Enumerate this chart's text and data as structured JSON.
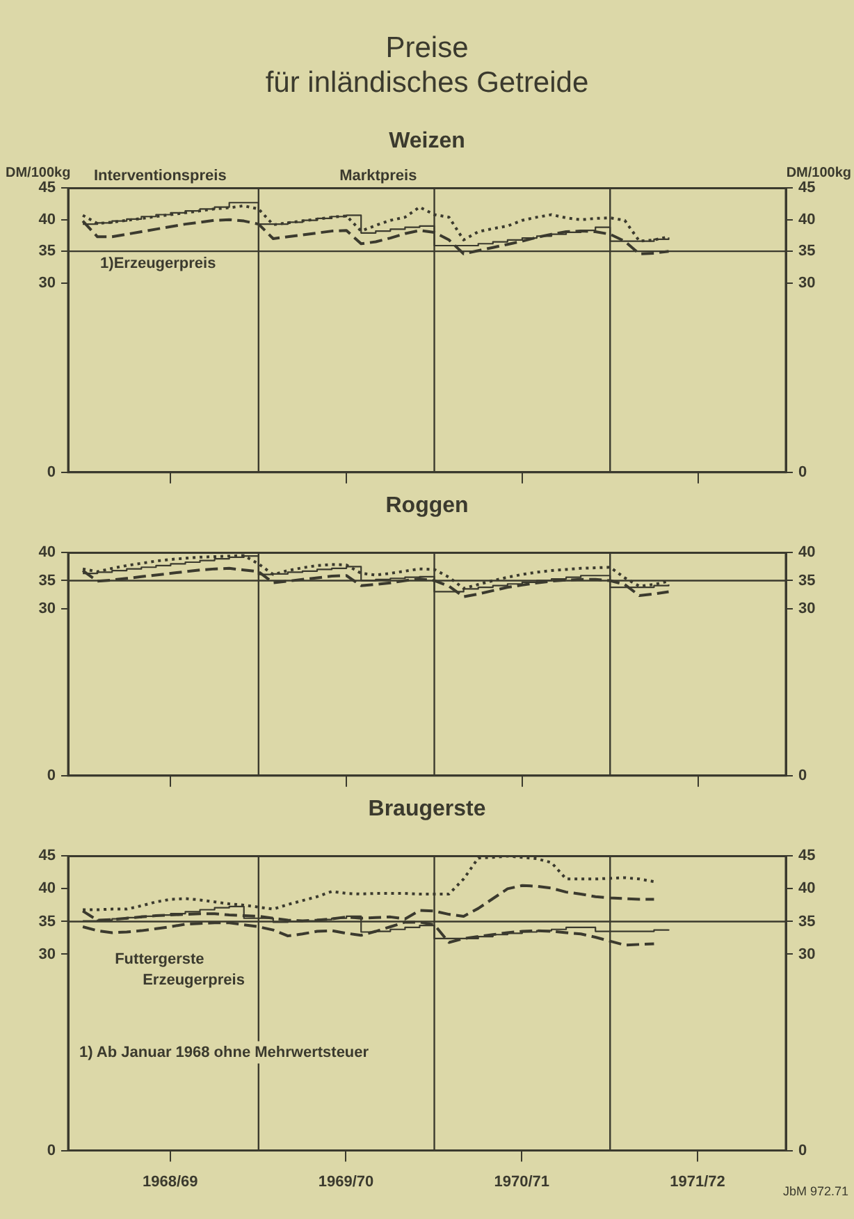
{
  "chart_data": [
    {
      "type": "line",
      "title": "Preise\nfür inländisches Getreide",
      "subtitle": "Weizen",
      "ylabel": "DM/100kg",
      "y2label": "DM/100kg",
      "x": [
        "1968-07",
        "1968-08",
        "1968-09",
        "1968-10",
        "1968-11",
        "1968-12",
        "1969-01",
        "1969-02",
        "1969-03",
        "1969-04",
        "1969-05",
        "1969-06",
        "1969-07",
        "1969-08",
        "1969-09",
        "1969-10",
        "1969-11",
        "1969-12",
        "1970-01",
        "1970-02",
        "1970-03",
        "1970-04",
        "1970-05",
        "1970-06",
        "1970-07",
        "1970-08",
        "1970-09",
        "1970-10",
        "1970-11",
        "1970-12",
        "1971-01",
        "1971-02",
        "1971-03",
        "1971-04",
        "1971-05",
        "1971-06",
        "1971-07",
        "1971-08",
        "1971-09",
        "1971-10",
        "1971-11"
      ],
      "series": [
        {
          "name": "Interventionspreis",
          "type": "step",
          "color": "#3b3a2e",
          "line_style": "solid",
          "values": [
            39.3,
            39.5,
            39.8,
            40.1,
            40.5,
            40.8,
            41.1,
            41.4,
            41.7,
            42.0,
            42.7,
            42.7,
            39.3,
            39.3,
            39.6,
            39.9,
            40.2,
            40.5,
            40.7,
            37.9,
            38.2,
            38.5,
            38.8,
            39.0,
            35.9,
            35.9,
            35.9,
            36.2,
            36.5,
            36.8,
            37.1,
            37.4,
            37.7,
            38.0,
            38.3,
            38.8,
            36.6,
            36.6,
            36.6,
            36.9,
            37.2
          ]
        },
        {
          "name": "Marktpreis",
          "color": "#3b3a2e",
          "line_style": "dotted",
          "values": [
            40.7,
            39.4,
            39.6,
            39.9,
            40.2,
            40.5,
            40.8,
            41.1,
            41.4,
            41.7,
            41.9,
            42.2,
            41.7,
            39.2,
            39.5,
            39.8,
            40.1,
            40.4,
            40.6,
            38.2,
            39.1,
            39.9,
            40.4,
            42.0,
            40.8,
            40.4,
            36.8,
            38.1,
            38.6,
            39.0,
            39.9,
            40.4,
            40.8,
            40.3,
            40.0,
            40.2,
            40.3,
            39.9,
            36.6,
            36.8,
            37.3
          ]
        },
        {
          "name": "1)Erzeugerpreis",
          "color": "#3b3a2e",
          "line_style": "dashed",
          "values": [
            39.8,
            37.3,
            37.3,
            37.7,
            38.1,
            38.5,
            38.9,
            39.3,
            39.6,
            39.9,
            40.0,
            39.8,
            39.3,
            37.0,
            37.3,
            37.6,
            37.9,
            38.2,
            38.3,
            36.2,
            36.5,
            37.1,
            37.8,
            38.3,
            38.0,
            36.8,
            34.6,
            35.1,
            35.6,
            36.1,
            36.6,
            37.2,
            37.7,
            38.1,
            38.2,
            38.1,
            37.7,
            36.6,
            34.6,
            34.7,
            35.0
          ]
        }
      ],
      "xlim": [
        "1968-06",
        "1972-07"
      ],
      "xticks": [
        {
          "value": "1969-01",
          "label": null
        },
        {
          "value": "1970-01",
          "label": null
        },
        {
          "value": "1971-01",
          "label": null
        },
        {
          "value": "1972-01",
          "label": null
        }
      ],
      "ylim": [
        0,
        45
      ],
      "yticks": [
        0,
        30,
        35,
        40,
        45
      ],
      "y2lim": [
        0,
        45
      ],
      "y2ticks": [
        0,
        30,
        35,
        40,
        45
      ],
      "ref_lines": [
        {
          "axis": "x",
          "value": "1969-07"
        },
        {
          "axis": "x",
          "value": "1970-07"
        },
        {
          "axis": "x",
          "value": "1971-07"
        },
        {
          "axis": "y",
          "value": 35
        }
      ],
      "tick_labels": "y",
      "grid": false,
      "legend": false,
      "marker": "none"
    },
    {
      "type": "line",
      "title": "Roggen",
      "x": [
        "1968-07",
        "1968-08",
        "1968-09",
        "1968-10",
        "1968-11",
        "1968-12",
        "1969-01",
        "1969-02",
        "1969-03",
        "1969-04",
        "1969-05",
        "1969-06",
        "1969-07",
        "1969-08",
        "1969-09",
        "1969-10",
        "1969-11",
        "1969-12",
        "1970-01",
        "1970-02",
        "1970-03",
        "1970-04",
        "1970-05",
        "1970-06",
        "1970-07",
        "1970-08",
        "1970-09",
        "1970-10",
        "1970-11",
        "1970-12",
        "1971-01",
        "1971-02",
        "1971-03",
        "1971-04",
        "1971-05",
        "1971-06",
        "1971-07",
        "1971-08",
        "1971-09",
        "1971-10",
        "1971-11"
      ],
      "series": [
        {
          "type": "step",
          "color": "#3b3a2e",
          "line_style": "solid",
          "values": [
            36.3,
            36.5,
            36.8,
            37.1,
            37.4,
            37.7,
            38.0,
            38.3,
            38.6,
            38.9,
            39.2,
            39.4,
            36.1,
            36.2,
            36.5,
            36.7,
            37.0,
            37.2,
            37.5,
            35.0,
            35.2,
            35.4,
            35.6,
            35.7,
            33.0,
            33.0,
            33.5,
            33.8,
            34.1,
            34.4,
            34.7,
            35.0,
            35.3,
            35.6,
            35.9,
            35.9,
            33.8,
            33.8,
            33.8,
            34.1,
            34.3
          ]
        },
        {
          "color": "#3b3a2e",
          "line_style": "dotted",
          "values": [
            37.1,
            36.6,
            37.2,
            37.7,
            38.1,
            38.5,
            38.8,
            39.0,
            39.2,
            39.3,
            39.4,
            39.5,
            38.0,
            36.1,
            36.8,
            37.3,
            37.7,
            37.9,
            37.8,
            36.3,
            36.0,
            36.3,
            36.7,
            37.1,
            37.0,
            35.6,
            33.6,
            34.3,
            35.0,
            35.6,
            36.1,
            36.5,
            36.8,
            37.0,
            37.2,
            37.3,
            37.4,
            35.5,
            34.0,
            34.3,
            34.9
          ]
        },
        {
          "color": "#3b3a2e",
          "line_style": "dashed",
          "values": [
            36.8,
            34.9,
            35.1,
            35.4,
            35.7,
            36.0,
            36.3,
            36.6,
            36.9,
            37.1,
            37.2,
            36.9,
            36.6,
            34.6,
            34.9,
            35.2,
            35.5,
            35.8,
            35.9,
            34.1,
            34.3,
            34.6,
            35.0,
            35.3,
            35.0,
            34.0,
            32.1,
            32.6,
            33.2,
            33.8,
            34.2,
            34.6,
            34.9,
            35.1,
            35.2,
            35.2,
            35.0,
            34.3,
            32.3,
            32.6,
            33.0
          ]
        }
      ],
      "xlim": [
        "1968-06",
        "1972-07"
      ],
      "xticks": [
        {
          "value": "1969-01",
          "label": null
        },
        {
          "value": "1970-01",
          "label": null
        },
        {
          "value": "1971-01",
          "label": null
        },
        {
          "value": "1972-01",
          "label": null
        }
      ],
      "ylim": [
        0,
        40
      ],
      "yticks": [
        0,
        30,
        35,
        40
      ],
      "y2lim": [
        0,
        40
      ],
      "y2ticks": [
        0,
        30,
        35,
        40
      ],
      "ref_lines": [
        {
          "axis": "x",
          "value": "1969-07"
        },
        {
          "axis": "x",
          "value": "1970-07"
        },
        {
          "axis": "x",
          "value": "1971-07"
        },
        {
          "axis": "y",
          "value": 35
        }
      ],
      "tick_labels": "y",
      "grid": false,
      "legend": false,
      "marker": "none"
    },
    {
      "type": "line",
      "title": "Braugerste",
      "x": [
        "1968-07",
        "1968-08",
        "1968-09",
        "1968-10",
        "1968-11",
        "1968-12",
        "1969-01",
        "1969-02",
        "1969-03",
        "1969-04",
        "1969-05",
        "1969-06",
        "1969-07",
        "1969-08",
        "1969-09",
        "1969-10",
        "1969-11",
        "1969-12",
        "1970-01",
        "1970-02",
        "1970-03",
        "1970-04",
        "1970-05",
        "1970-06",
        "1970-07",
        "1970-08",
        "1970-09",
        "1970-10",
        "1970-11",
        "1970-12",
        "1971-01",
        "1971-02",
        "1971-03",
        "1971-04",
        "1971-05",
        "1971-06",
        "1971-07",
        "1971-08",
        "1971-09",
        "1971-10",
        "1971-11"
      ],
      "series": [
        {
          "color": "#3b3a2e",
          "line_style": "dotted",
          "values": [
            36.8,
            36.8,
            36.9,
            36.9,
            37.4,
            38.0,
            38.4,
            38.5,
            38.3,
            38.0,
            37.7,
            37.5,
            37.2,
            36.9,
            37.6,
            38.2,
            38.8,
            39.6,
            39.3,
            39.2,
            39.3,
            39.3,
            39.3,
            39.2,
            39.2,
            39.2,
            41.5,
            44.7,
            44.8,
            45.0,
            44.8,
            44.6,
            44.0,
            41.5,
            41.5,
            41.5,
            41.6,
            41.7,
            41.5,
            41.1,
            null
          ]
        },
        {
          "color": "#3b3a2e",
          "line_style": "dashed",
          "values": [
            36.6,
            35.2,
            35.3,
            35.5,
            35.7,
            35.9,
            36.0,
            36.1,
            36.2,
            36.2,
            36.0,
            35.9,
            35.8,
            35.5,
            35.2,
            35.1,
            35.2,
            35.4,
            35.7,
            35.5,
            35.6,
            35.7,
            35.4,
            36.7,
            36.6,
            36.1,
            35.8,
            37.0,
            38.5,
            40.0,
            40.5,
            40.4,
            40.1,
            39.5,
            39.2,
            38.8,
            38.6,
            38.5,
            38.4,
            38.4,
            null
          ]
        },
        {
          "name": "Futtergerste",
          "color": "#3b3a2e",
          "line_style": "dashed",
          "values": [
            34.2,
            33.6,
            33.3,
            33.4,
            33.6,
            33.9,
            34.2,
            34.6,
            34.7,
            34.8,
            34.8,
            34.5,
            34.2,
            33.7,
            32.8,
            33.1,
            33.5,
            33.6,
            33.2,
            32.9,
            33.5,
            34.2,
            34.9,
            34.9,
            34.5,
            31.8,
            32.4,
            32.7,
            33.0,
            33.3,
            33.5,
            33.6,
            33.5,
            33.3,
            33.1,
            32.6,
            32.0,
            31.4,
            31.5,
            31.6,
            null
          ]
        },
        {
          "type": "step",
          "color": "#3b3a2e",
          "line_style": "solid",
          "values": [
            35.1,
            35.2,
            35.4,
            35.6,
            35.8,
            36.0,
            36.2,
            36.5,
            36.8,
            37.1,
            37.3,
            35.5,
            35.5,
            34.9,
            35.0,
            35.1,
            35.3,
            35.5,
            35.8,
            33.4,
            33.5,
            33.8,
            34.1,
            34.4,
            32.4,
            32.4,
            32.4,
            32.7,
            33.0,
            33.2,
            33.4,
            33.6,
            33.8,
            34.1,
            34.1,
            33.5,
            33.5,
            33.5,
            33.5,
            33.7,
            33.8
          ]
        }
      ],
      "annotations": [
        "Erzeugerpreis",
        "1) Ab Januar 1968 ohne Mehrwertsteuer",
        "JbM 972.71"
      ],
      "xlim": [
        "1968-06",
        "1972-07"
      ],
      "xticks": [
        {
          "value": "1968-12-31",
          "label": "1968/69"
        },
        {
          "value": "1969-12-31",
          "label": "1969/70"
        },
        {
          "value": "1970-12-31",
          "label": "1970/71"
        },
        {
          "value": "1971-12-31",
          "label": "1971/72"
        }
      ],
      "ylim": [
        0,
        45
      ],
      "yticks": [
        0,
        30,
        35,
        40,
        45
      ],
      "y2lim": [
        0,
        45
      ],
      "y2ticks": [
        0,
        30,
        35,
        40,
        45
      ],
      "ref_lines": [
        {
          "axis": "x",
          "value": "1969-07"
        },
        {
          "axis": "x",
          "value": "1970-07"
        },
        {
          "axis": "x",
          "value": "1971-07"
        },
        {
          "axis": "y",
          "value": 35
        }
      ],
      "grid": false,
      "legend": false,
      "marker": "none"
    }
  ]
}
